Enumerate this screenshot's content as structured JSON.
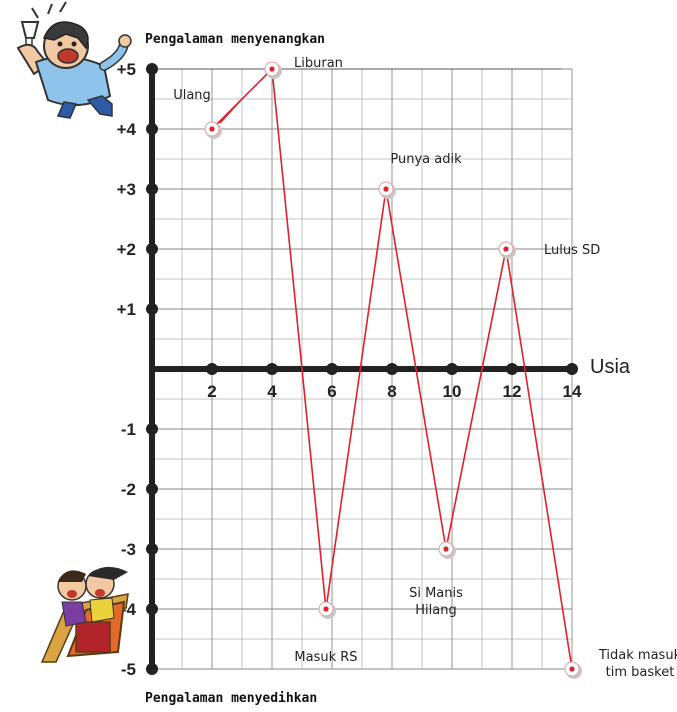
{
  "chart_data": {
    "type": "line",
    "xlabel": "Usia",
    "ylabel_top": "Pengalaman menyenangkan",
    "ylabel_bottom": "Pengalaman menyedihkan",
    "xlim": [
      0,
      14
    ],
    "ylim": [
      -5,
      5
    ],
    "x_ticks": [
      "2",
      "4",
      "6",
      "8",
      "10",
      "12",
      "14"
    ],
    "y_ticks": [
      "+5",
      "+4",
      "+3",
      "+2",
      "+1",
      "-1",
      "-2",
      "-3",
      "-4",
      "-5"
    ],
    "grid": true,
    "line_color": "#e0202a",
    "points": [
      {
        "x": 2,
        "y": 4,
        "label": "Ulang"
      },
      {
        "x": 4,
        "y": 5,
        "label": "Liburan"
      },
      {
        "x": 5.8,
        "y": -4,
        "label": "Masuk RS"
      },
      {
        "x": 7.8,
        "y": 3,
        "label": "Punya adik"
      },
      {
        "x": 9.8,
        "y": -3,
        "label": [
          "Si Manis",
          "Hilang"
        ]
      },
      {
        "x": 11.8,
        "y": 2,
        "label": "Lulus SD"
      },
      {
        "x": 14,
        "y": -5,
        "label": [
          "Tidak masuk",
          "tim basket"
        ]
      }
    ]
  },
  "illustrations": {
    "top": "happy-man-toasting-icon",
    "bottom": "roller-coaster-riders-icon"
  }
}
